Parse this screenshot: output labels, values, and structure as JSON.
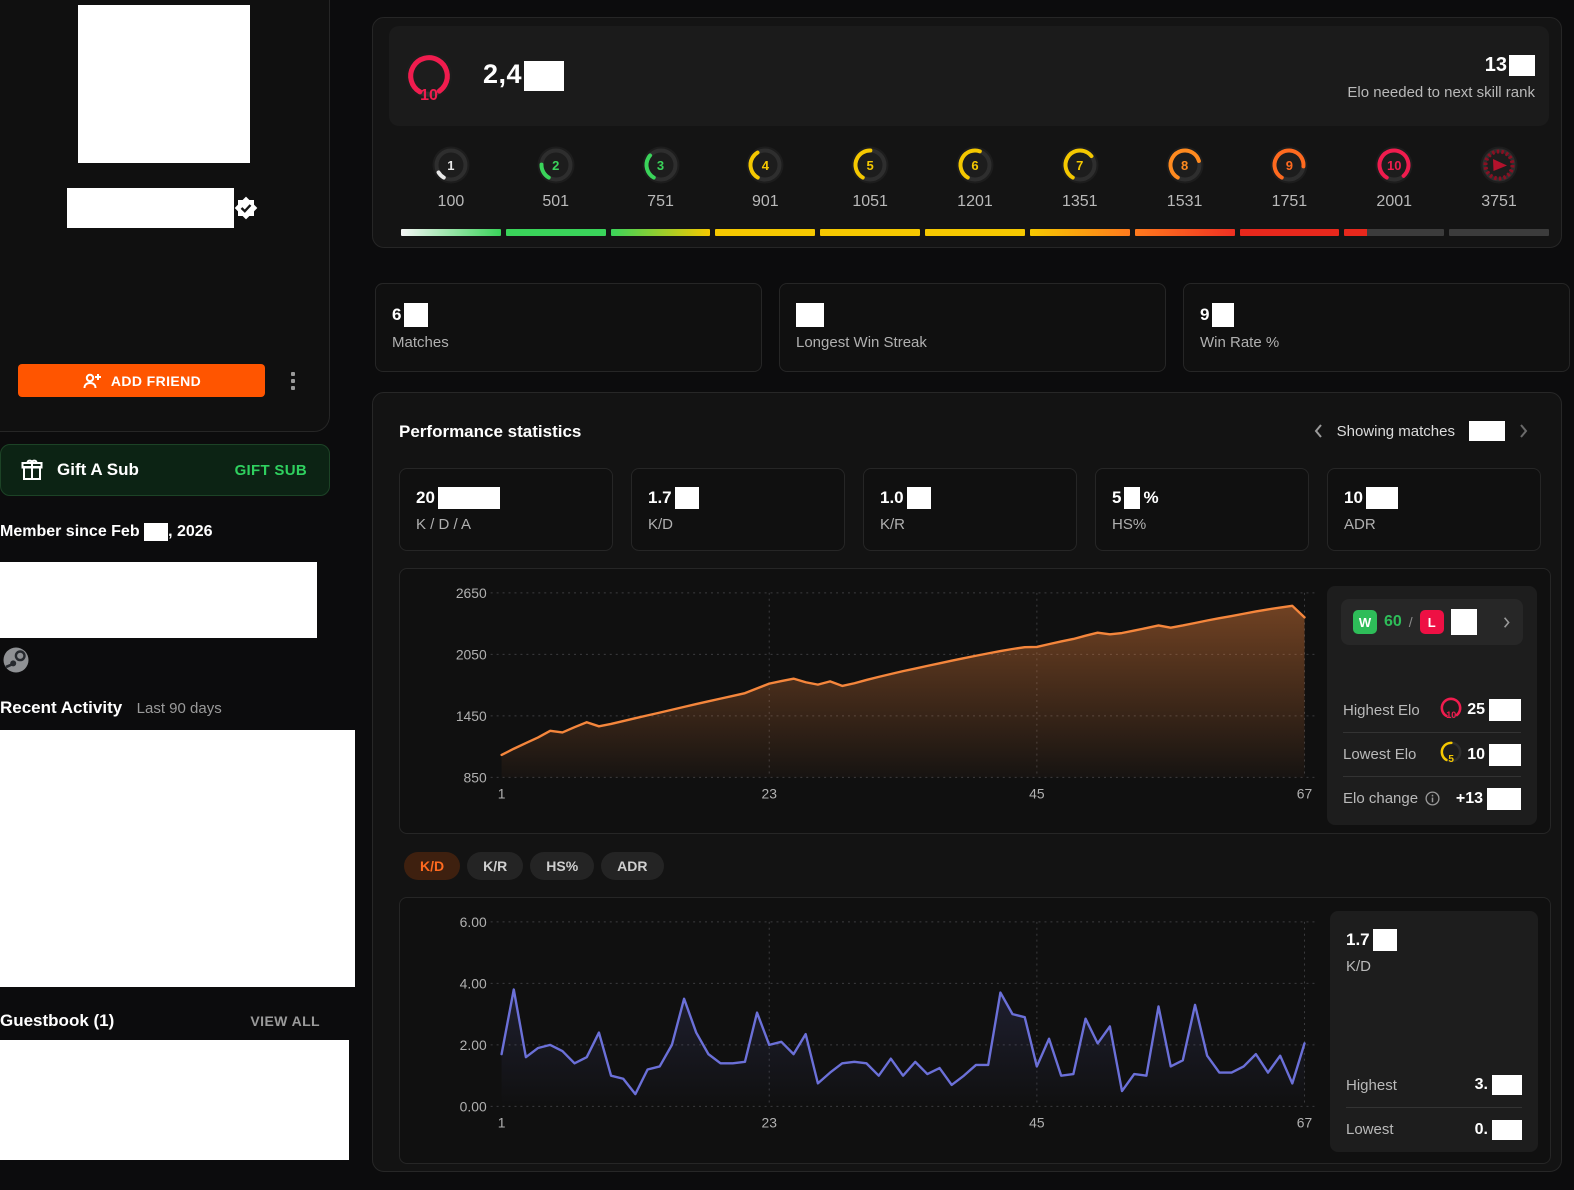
{
  "sidebar": {
    "add_friend_label": "ADD FRIEND",
    "gift": {
      "title": "Gift A Sub",
      "button": "GIFT SUB"
    },
    "member_since_prefix": "Member since Feb",
    "member_since_suffix": ", 2026",
    "recent_activity_title": "Recent Activity",
    "recent_activity_sub": "Last 90 days",
    "guestbook_title": "Guestbook (1)",
    "view_all_label": "VIEW ALL"
  },
  "elo_header": {
    "level": "10",
    "elo_partial": "2,4",
    "next_rank_partial": "13",
    "next_rank_label": "Elo needed to next skill rank"
  },
  "skill_ladder": {
    "levels": [
      {
        "level": "1",
        "threshold": "100",
        "color": "#e8e8e8",
        "frac": 0.08
      },
      {
        "level": "2",
        "threshold": "501",
        "color": "#3ad45a",
        "frac": 0.17
      },
      {
        "level": "3",
        "threshold": "751",
        "color": "#3ad45a",
        "frac": 0.28
      },
      {
        "level": "4",
        "threshold": "901",
        "color": "#f5c800",
        "frac": 0.33
      },
      {
        "level": "5",
        "threshold": "1051",
        "color": "#f5c800",
        "frac": 0.42
      },
      {
        "level": "6",
        "threshold": "1201",
        "color": "#f5c800",
        "frac": 0.47
      },
      {
        "level": "7",
        "threshold": "1351",
        "color": "#f5c800",
        "frac": 0.56
      },
      {
        "level": "8",
        "threshold": "1531",
        "color": "#ff8a1f",
        "frac": 0.62
      },
      {
        "level": "9",
        "threshold": "1751",
        "color": "#ff6a1f",
        "frac": 0.68
      },
      {
        "level": "10",
        "threshold": "2001",
        "color": "#f01c4e",
        "frac": 0.8
      },
      {
        "level": "challenger",
        "threshold": "3751",
        "color": "#8a0f22",
        "frac": 0
      }
    ],
    "bar_segments": [
      "linear-gradient(90deg,#f5f5f5,#3ad45a)",
      "#3ad45a",
      "linear-gradient(90deg,#3ad45a,#f5c800)",
      "#f5c800",
      "#f5c800",
      "#f5c800",
      "linear-gradient(90deg,#f5c800,#ff7a1d)",
      "linear-gradient(90deg,#ff7a1d,#f03022)",
      "#e8281c",
      "linear-gradient(90deg,#e8281c 0%,#e8281c 23%,#3c3c3c 23%,#3c3c3c 100%)",
      "#3c3c3c"
    ]
  },
  "summary_cards": [
    {
      "value_partial": "6",
      "label": "Matches",
      "redact_w": 24
    },
    {
      "value_partial": "",
      "label": "Longest Win Streak",
      "redact_w": 28
    },
    {
      "value_partial": "9",
      "label": "Win Rate %",
      "redact_w": 22
    }
  ],
  "performance": {
    "title": "Performance statistics",
    "showing_label": "Showing matches",
    "stat_cards": [
      {
        "value_partial": "20",
        "suffix": "",
        "label": "K / D / A",
        "redact_w": 62
      },
      {
        "value_partial": "1.7",
        "suffix": "",
        "label": "K/D",
        "redact_w": 24
      },
      {
        "value_partial": "1.0",
        "suffix": "",
        "label": "K/R",
        "redact_w": 24
      },
      {
        "value_partial": "5",
        "suffix": "%",
        "label": "HS%",
        "redact_w": 16
      },
      {
        "value_partial": "10",
        "suffix": "",
        "label": "ADR",
        "redact_w": 32
      }
    ],
    "tabs": [
      {
        "label": "K/D",
        "active": true
      },
      {
        "label": "K/R",
        "active": false
      },
      {
        "label": "HS%",
        "active": false
      },
      {
        "label": "ADR",
        "active": false
      }
    ],
    "elo_side": {
      "w_letter": "W",
      "wins": "60",
      "l_letter": "L",
      "highest_label": "Highest Elo",
      "highest_partial": "25",
      "lowest_label": "Lowest Elo",
      "lowest_partial": "10",
      "change_label": "Elo change",
      "change_partial": "+13",
      "highest_level": "10",
      "lowest_level": "5"
    },
    "kd_side": {
      "value_partial": "1.7",
      "label": "K/D",
      "highest_label": "Highest",
      "highest_partial": "3.",
      "lowest_label": "Lowest",
      "lowest_partial": "0."
    }
  },
  "chart_data": [
    {
      "id": "elo",
      "type": "area",
      "title": "Elo rating over matches shown",
      "line_color": "#f5863c",
      "x_ticks": [
        1,
        23,
        45,
        67
      ],
      "y_ticks": [
        2650,
        2050,
        1450,
        850
      ],
      "y_tick_labels": [
        "2650",
        "2050",
        "1450",
        "850"
      ],
      "ylim": [
        850,
        2650
      ],
      "grid": true,
      "legend_position": "right-panel",
      "values": [
        1070,
        1130,
        1185,
        1240,
        1305,
        1288,
        1340,
        1388,
        1348,
        1372,
        1400,
        1428,
        1455,
        1482,
        1510,
        1538,
        1565,
        1592,
        1618,
        1645,
        1672,
        1718,
        1765,
        1790,
        1813,
        1778,
        1755,
        1787,
        1742,
        1768,
        1800,
        1830,
        1858,
        1886,
        1912,
        1938,
        1963,
        1988,
        2012,
        2036,
        2060,
        2082,
        2102,
        2120,
        2123,
        2150,
        2176,
        2200,
        2232,
        2261,
        2245,
        2258,
        2282,
        2306,
        2332,
        2310,
        2332,
        2356,
        2380,
        2402,
        2424,
        2446,
        2468,
        2488,
        2506,
        2523,
        2411
      ]
    },
    {
      "id": "kd",
      "type": "line",
      "title": "K/D per match",
      "line_color": "#6b70d8",
      "x_ticks": [
        1,
        23,
        45,
        67
      ],
      "y_ticks": [
        6,
        4,
        2,
        0
      ],
      "y_tick_labels": [
        "6.00",
        "4.00",
        "2.00",
        "0.00"
      ],
      "ylim": [
        0,
        6
      ],
      "grid": true,
      "legend_position": "right-panel",
      "values": [
        1.7,
        3.8,
        1.6,
        1.9,
        2.0,
        1.8,
        1.4,
        1.6,
        2.4,
        1.0,
        0.9,
        0.4,
        1.2,
        1.3,
        2.0,
        3.5,
        2.4,
        1.7,
        1.4,
        1.4,
        1.45,
        3.05,
        2.0,
        2.1,
        1.7,
        2.35,
        0.75,
        1.1,
        1.4,
        1.45,
        1.4,
        1.0,
        1.55,
        1.0,
        1.45,
        1.05,
        1.25,
        0.7,
        1.0,
        1.35,
        1.35,
        3.7,
        3.0,
        2.9,
        1.3,
        2.2,
        1.0,
        1.05,
        2.85,
        2.05,
        2.6,
        0.5,
        1.05,
        1.0,
        3.25,
        1.3,
        1.5,
        3.3,
        1.65,
        1.1,
        1.1,
        1.3,
        1.7,
        1.1,
        1.65,
        0.75,
        2.05
      ]
    }
  ],
  "colors": {
    "accent_orange": "#ff5500",
    "chart_orange": "#f5863c",
    "chart_purple": "#6b70d8",
    "win_green": "#2ebd59",
    "loss_red": "#ee1044",
    "level10_red": "#f01c4e",
    "gift_green": "#2fd05f"
  }
}
